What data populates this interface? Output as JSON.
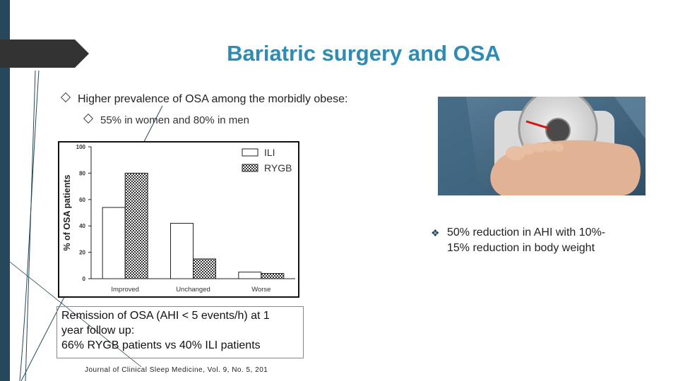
{
  "slide": {
    "title": "Bariatric surgery and OSA",
    "bullets": [
      {
        "text": "Higher prevalence of OSA among the morbidly obese:",
        "level": 1
      },
      {
        "text": "55% in women and 80% in men",
        "level": 2
      }
    ],
    "caption_lines": [
      "Remission of OSA (AHI < 5 events/h) at 1",
      "year follow up:",
      "66% RYGB patients vs 40% ILI patients"
    ],
    "citation": "Journal of Clinical Sleep Medicine, Vol. 9, No. 5, 201",
    "note_lines": [
      "50% reduction in AHI with 10%-",
      "15% reduction in body weight"
    ],
    "photo_icon": "bathroom-scale-feet-photo",
    "colors": {
      "title": "#2e8cb4",
      "left_bar": "#26485a"
    }
  },
  "chart_data": {
    "type": "bar",
    "categories": [
      "Improved",
      "Unchanged",
      "Worse"
    ],
    "series": [
      {
        "name": "ILI",
        "values": [
          54,
          42,
          5
        ],
        "fill": "white"
      },
      {
        "name": "RYGB",
        "values": [
          80,
          15,
          4
        ],
        "fill": "checkered"
      }
    ],
    "ylabel": "% of OSA patients",
    "xlabel": "",
    "ylim": [
      0,
      100
    ],
    "yticks": [
      0,
      20,
      40,
      60,
      80,
      100
    ],
    "legend_position": "top-right",
    "grid": false
  }
}
